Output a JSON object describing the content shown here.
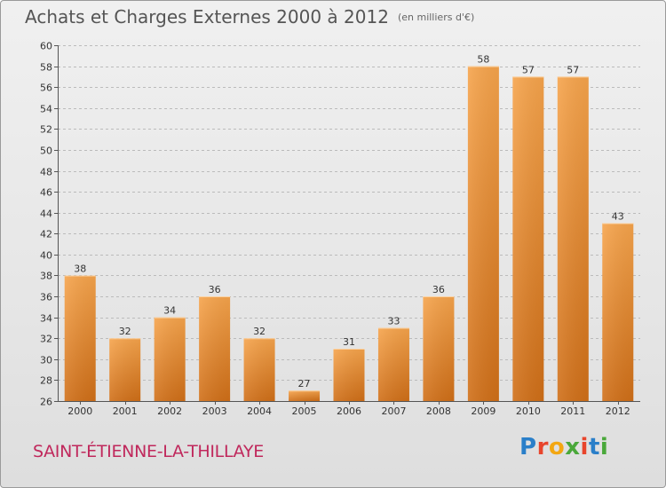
{
  "title": "Achats et Charges Externes 2000 à 2012",
  "title_unit": "(en milliers d'€)",
  "commune": "SAINT-ÉTIENNE-LA-THILLAYE",
  "logo": {
    "letters": [
      "P",
      "r",
      "o",
      "x",
      "i",
      "t",
      "i"
    ],
    "colors": [
      "#2a7fc9",
      "#e8452c",
      "#f3a712",
      "#4aa83a",
      "#e8452c",
      "#2a7fc9",
      "#4aa83a"
    ]
  },
  "colors": {
    "bar_top": "#f6a44c",
    "bar_bottom": "#d06f18",
    "grid": "#bbbbbb",
    "axis": "#555555"
  },
  "chart_data": {
    "type": "bar",
    "title": "Achats et Charges Externes 2000 à 2012",
    "xlabel": "",
    "ylabel": "",
    "categories": [
      "2000",
      "2001",
      "2002",
      "2003",
      "2004",
      "2005",
      "2006",
      "2007",
      "2008",
      "2009",
      "2010",
      "2011",
      "2012"
    ],
    "values": [
      38,
      32,
      34,
      36,
      32,
      27,
      31,
      33,
      36,
      58,
      57,
      57,
      43
    ],
    "ylim": [
      26,
      60
    ],
    "ytick_step": 2,
    "grid": "horizontal"
  }
}
